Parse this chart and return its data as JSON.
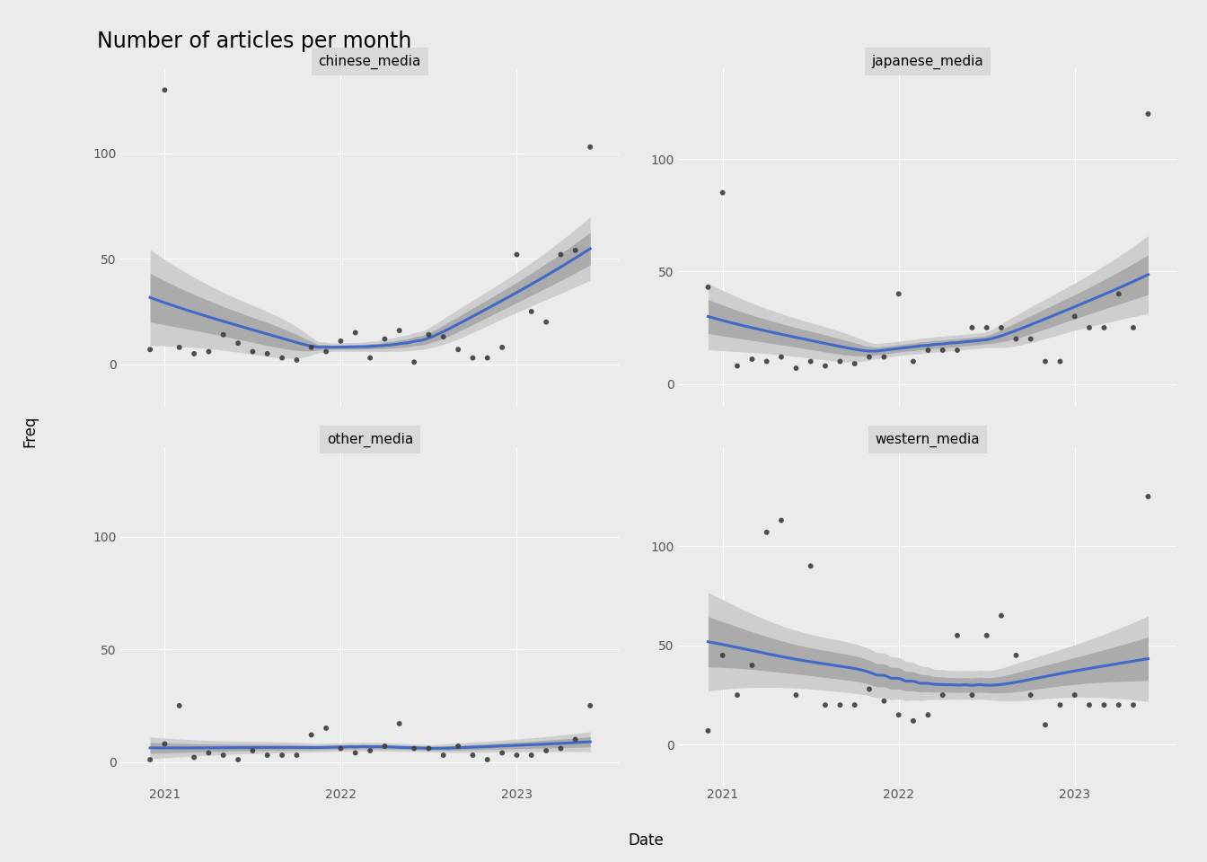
{
  "title": "Number of articles per month",
  "xlabel": "Date",
  "ylabel": "Freq",
  "subplots": [
    {
      "name": "chinese_media",
      "scatter_x": [
        2020.917,
        2021.0,
        2021.083,
        2021.167,
        2021.25,
        2021.333,
        2021.417,
        2021.5,
        2021.583,
        2021.667,
        2021.75,
        2021.833,
        2021.917,
        2022.0,
        2022.083,
        2022.167,
        2022.25,
        2022.333,
        2022.417,
        2022.5,
        2022.583,
        2022.667,
        2022.75,
        2022.833,
        2022.917,
        2023.0,
        2023.083,
        2023.167,
        2023.25,
        2023.333,
        2023.417
      ],
      "scatter_y": [
        7,
        130,
        8,
        5,
        6,
        14,
        10,
        6,
        5,
        3,
        2,
        8,
        6,
        11,
        15,
        3,
        12,
        16,
        1,
        14,
        13,
        7,
        3,
        3,
        8,
        52,
        25,
        20,
        52,
        54,
        103
      ],
      "ylim": [
        -20,
        140
      ],
      "yticks": [
        0,
        50,
        100
      ]
    },
    {
      "name": "japanese_media",
      "scatter_x": [
        2020.917,
        2021.0,
        2021.083,
        2021.167,
        2021.25,
        2021.333,
        2021.417,
        2021.5,
        2021.583,
        2021.667,
        2021.75,
        2021.833,
        2021.917,
        2022.0,
        2022.083,
        2022.167,
        2022.25,
        2022.333,
        2022.417,
        2022.5,
        2022.583,
        2022.667,
        2022.75,
        2022.833,
        2022.917,
        2023.0,
        2023.083,
        2023.167,
        2023.25,
        2023.333,
        2023.417
      ],
      "scatter_y": [
        43,
        85,
        8,
        11,
        10,
        12,
        7,
        10,
        8,
        10,
        9,
        12,
        12,
        40,
        10,
        15,
        15,
        15,
        25,
        25,
        25,
        20,
        20,
        10,
        10,
        30,
        25,
        25,
        40,
        25,
        120
      ],
      "ylim": [
        -10,
        140
      ],
      "yticks": [
        0,
        50,
        100
      ]
    },
    {
      "name": "other_media",
      "scatter_x": [
        2020.917,
        2021.0,
        2021.083,
        2021.167,
        2021.25,
        2021.333,
        2021.417,
        2021.5,
        2021.583,
        2021.667,
        2021.75,
        2021.833,
        2021.917,
        2022.0,
        2022.083,
        2022.167,
        2022.25,
        2022.333,
        2022.417,
        2022.5,
        2022.583,
        2022.667,
        2022.75,
        2022.833,
        2022.917,
        2023.0,
        2023.083,
        2023.167,
        2023.25,
        2023.333,
        2023.417
      ],
      "scatter_y": [
        1,
        8,
        25,
        2,
        4,
        3,
        1,
        5,
        3,
        3,
        3,
        12,
        15,
        6,
        4,
        5,
        7,
        17,
        6,
        6,
        3,
        7,
        3,
        1,
        4,
        3,
        3,
        5,
        6,
        10,
        25
      ],
      "ylim": [
        -10,
        140
      ],
      "yticks": [
        0,
        50,
        100
      ]
    },
    {
      "name": "western_media",
      "scatter_x": [
        2020.917,
        2021.0,
        2021.083,
        2021.167,
        2021.25,
        2021.333,
        2021.417,
        2021.5,
        2021.583,
        2021.667,
        2021.75,
        2021.833,
        2021.917,
        2022.0,
        2022.083,
        2022.167,
        2022.25,
        2022.333,
        2022.417,
        2022.5,
        2022.583,
        2022.667,
        2022.75,
        2022.833,
        2022.917,
        2023.0,
        2023.083,
        2023.167,
        2023.25,
        2023.333,
        2023.417
      ],
      "scatter_y": [
        7,
        45,
        25,
        40,
        107,
        113,
        25,
        90,
        20,
        20,
        20,
        28,
        22,
        15,
        12,
        15,
        25,
        55,
        25,
        55,
        65,
        45,
        25,
        10,
        20,
        25,
        20,
        20,
        20,
        20,
        125
      ],
      "ylim": [
        -20,
        150
      ],
      "yticks": [
        0,
        50,
        100
      ]
    }
  ],
  "bg_color": "#ebebeb",
  "panel_bg": "#ebebeb",
  "strip_bg": "#d9d9d9",
  "line_color": "#4169c8",
  "scatter_color": "#3d3d3d",
  "ci_inner_color": "#ababab",
  "ci_outer_color": "#cecece",
  "xlim": [
    2020.75,
    2023.58
  ],
  "xticks": [
    2021,
    2022,
    2023
  ],
  "xticklabels": [
    "2021",
    "2022",
    "2023"
  ],
  "loess_span": 0.75
}
